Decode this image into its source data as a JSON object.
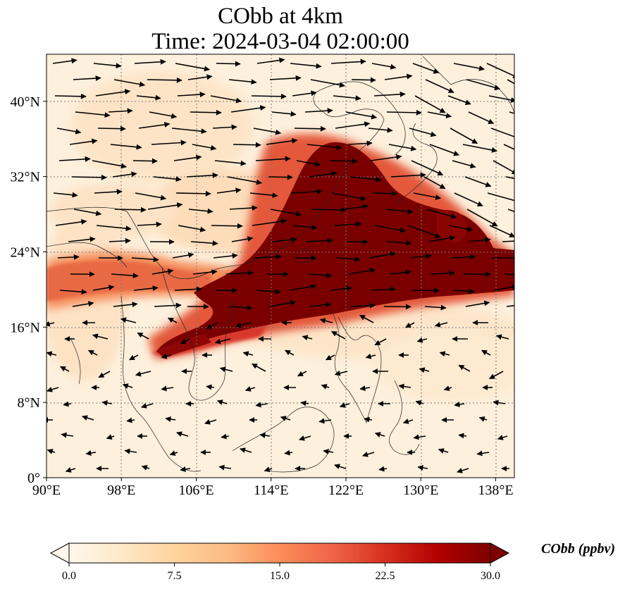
{
  "title": "CObb at 4km",
  "subtitle": "Time: 2024-03-04 02:00:00",
  "map": {
    "extent": {
      "lon": [
        90,
        140
      ],
      "lat": [
        0,
        45
      ]
    },
    "x_ticks": [
      90,
      98,
      106,
      114,
      122,
      130,
      138
    ],
    "x_tick_labels": [
      "90°E",
      "98°E",
      "106°E",
      "114°E",
      "122°E",
      "130°E",
      "138°E"
    ],
    "y_ticks": [
      0,
      8,
      16,
      24,
      32,
      40
    ],
    "y_tick_labels": [
      "0°",
      "8°N",
      "16°N",
      "24°N",
      "32°N",
      "40°N"
    ],
    "gridlines": true,
    "field": "CObb concentration",
    "plume_color": "#7a0000",
    "background_color": "#fdf0dc"
  },
  "colorbar": {
    "label": "CObb (ppbv)",
    "ticks": [
      0.0,
      7.5,
      15.0,
      22.5,
      30.0
    ],
    "tick_labels": [
      "0.0",
      "7.5",
      "15.0",
      "22.5",
      "30.0"
    ],
    "cmap": "OrRd",
    "extend": "both",
    "colors": [
      "#fff7ec",
      "#fee8c8",
      "#fdd49e",
      "#fdbb84",
      "#fc8d59",
      "#ef6548",
      "#d7301f",
      "#b30000",
      "#7f0000"
    ]
  },
  "vectors": "wind arrows, predominantly westerly in the north, easterly in the south"
}
